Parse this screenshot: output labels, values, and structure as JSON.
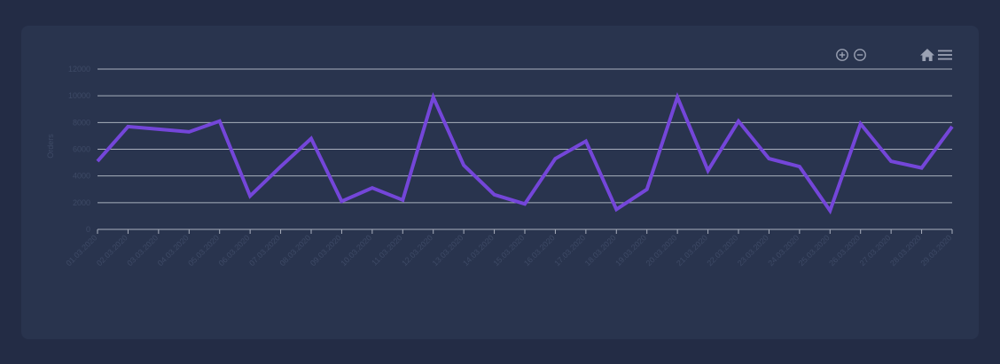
{
  "colors": {
    "background": "#232c45",
    "card": "#29344e",
    "line": "#7446d9",
    "grid": "#a9afbd",
    "label": "#3e4a66",
    "icon": "#9aa1b3"
  },
  "toolbar": {
    "zoom_in_icon": "zoom-in-icon",
    "zoom_out_icon": "zoom-out-icon",
    "home_icon": "home-icon",
    "menu_icon": "menu-icon"
  },
  "chart_data": {
    "type": "line",
    "title": "",
    "xlabel": "",
    "ylabel": "Orders",
    "ylim": [
      0,
      12000
    ],
    "yticks": [
      "0",
      "2000",
      "4000",
      "6000",
      "8000",
      "10000",
      "12000"
    ],
    "grid": true,
    "categories": [
      "01.03.2020",
      "02.03.2020",
      "03.03.2020",
      "04.03.2020",
      "05.03.2020",
      "06.03.2020",
      "07.03.2020",
      "08.03.2020",
      "09.03.2020",
      "10.03.2020",
      "11.03.2020",
      "12.03.2020",
      "13.03.2020",
      "14.03.2020",
      "15.03.2020",
      "16.03.2020",
      "17.03.2020",
      "18.03.2020",
      "19.03.2020",
      "20.03.2020",
      "21.03.2020",
      "22.03.2020",
      "23.03.2020",
      "24.03.2020",
      "25.03.2020",
      "26.03.2020",
      "27.03.2020",
      "28.03.2020",
      "29.03.2020"
    ],
    "series": [
      {
        "name": "Orders",
        "values": [
          5100,
          7700,
          7500,
          7300,
          8100,
          2500,
          4700,
          6800,
          2100,
          3100,
          2200,
          9900,
          4800,
          2600,
          1900,
          5300,
          6600,
          1500,
          3000,
          9900,
          4400,
          8100,
          5300,
          4700,
          1400,
          7900,
          5100,
          4600,
          7700
        ]
      }
    ]
  }
}
